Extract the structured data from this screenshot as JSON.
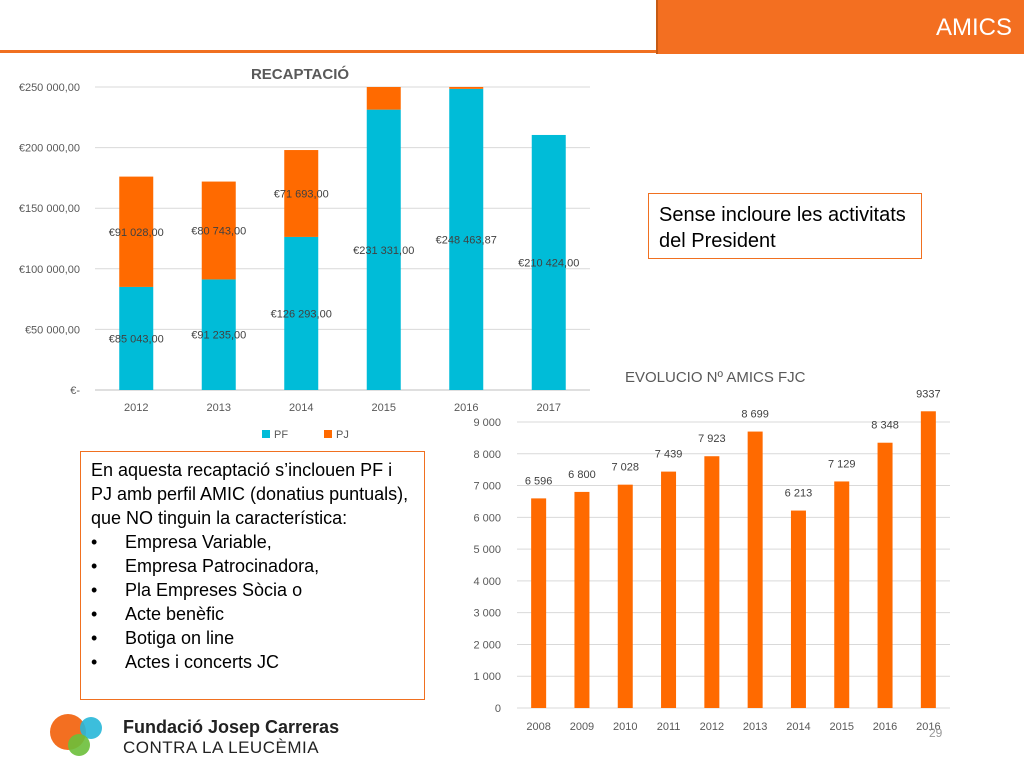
{
  "header": {
    "title": "AMICS"
  },
  "chart_data": [
    {
      "type": "bar",
      "stacked": true,
      "title": "RECAPTACIÓ",
      "categories": [
        "2012",
        "2013",
        "2014",
        "2015",
        "2016",
        "2017"
      ],
      "series": [
        {
          "name": "PF",
          "color": "#00bcd8",
          "values": [
            85043,
            91235,
            126293,
            231331,
            248463.87,
            210424
          ],
          "labels": [
            "€85 043,00",
            "€91 235,00",
            "€126 293,00",
            "€231 331,00",
            "€248 463,87",
            "€210 424,00"
          ]
        },
        {
          "name": "PJ",
          "color": "#ff6a00",
          "values": [
            91028,
            80743,
            71693,
            19000,
            2000,
            null
          ],
          "labels": [
            "€91 028,00",
            "€80 743,00",
            "€71 693,00",
            "",
            "",
            ""
          ]
        }
      ],
      "ylim": [
        0,
        250000
      ],
      "yticks": [
        0,
        50000,
        100000,
        150000,
        200000,
        250000
      ],
      "ytick_labels": [
        "€-",
        "€50 000,00",
        "€100 000,00",
        "€150 000,00",
        "€200 000,00",
        "€250 000,00"
      ],
      "grid": true,
      "legend": "bottom"
    },
    {
      "type": "bar",
      "title": "EVOLUCIO Nº AMICS FJC",
      "categories": [
        "2008",
        "2009",
        "2010",
        "2011",
        "2012",
        "2013",
        "2014",
        "2015",
        "2016",
        "2016"
      ],
      "values": [
        6596,
        6800,
        7028,
        7439,
        7923,
        8699,
        6213,
        7129,
        8348,
        9337
      ],
      "labels": [
        "6 596",
        "6 800",
        "7 028",
        "7 439",
        "7 923",
        "8 699",
        "6 213",
        "7 129",
        "8 348",
        "9337"
      ],
      "color": "#ff6a00",
      "ylim": [
        0,
        9000
      ],
      "yticks": [
        0,
        1000,
        2000,
        3000,
        4000,
        5000,
        6000,
        7000,
        8000,
        9000
      ],
      "ytick_labels": [
        "0",
        "1 000",
        "2 000",
        "3 000",
        "4 000",
        "5 000",
        "6 000",
        "7 000",
        "8 000",
        "9 000"
      ],
      "grid": true
    }
  ],
  "notes": {
    "president": "Sense incloure les activitats del President",
    "recaptacio_intro": "En aquesta recaptació s’inclouen PF i PJ amb perfil AMIC (donatius puntuals), que NO tinguin la característica:",
    "recaptacio_items": [
      "Empresa Variable,",
      "Empresa Patrocinadora,",
      "Pla Empreses Sòcia o",
      "Acte benèfic",
      "Botiga on line",
      "Actes i concerts JC"
    ]
  },
  "footer": {
    "org_name": "Fundació Josep Carreras",
    "org_subtitle": "CONTRA LA LEUCÈMIA",
    "page_number": "29"
  }
}
